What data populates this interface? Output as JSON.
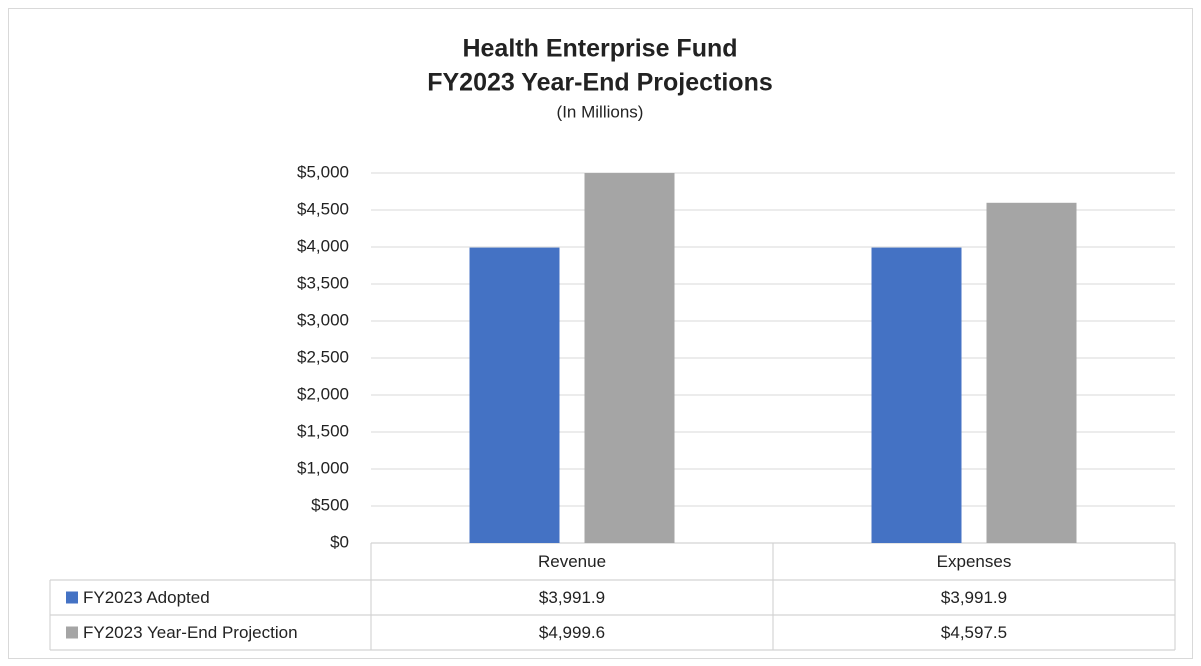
{
  "chart_data": {
    "type": "bar",
    "title": [
      "Health Enterprise Fund",
      "FY2023 Year-End Projections"
    ],
    "subtitle": "(In Millions)",
    "categories": [
      "Revenue",
      "Expenses"
    ],
    "series": [
      {
        "name": "FY2023 Adopted",
        "color": "#4472c4",
        "values": [
          3991.9,
          3991.9
        ],
        "value_labels": [
          "$3,991.9",
          "$3,991.9"
        ]
      },
      {
        "name": "FY2023 Year-End Projection",
        "color": "#a5a5a5",
        "values": [
          4999.6,
          4597.5
        ],
        "value_labels": [
          "$4,999.6",
          "$4,597.5"
        ]
      }
    ],
    "ylim": [
      0,
      5000
    ],
    "yticks": [
      {
        "value": 0,
        "label": "$0"
      },
      {
        "value": 500,
        "label": "$500"
      },
      {
        "value": 1000,
        "label": "$1,000"
      },
      {
        "value": 1500,
        "label": "$1,500"
      },
      {
        "value": 2000,
        "label": "$2,000"
      },
      {
        "value": 2500,
        "label": "$2,500"
      },
      {
        "value": 3000,
        "label": "$3,000"
      },
      {
        "value": 3500,
        "label": "$3,500"
      },
      {
        "value": 4000,
        "label": "$4,000"
      },
      {
        "value": 4500,
        "label": "$4,500"
      },
      {
        "value": 5000,
        "label": "$5,000"
      }
    ],
    "grid": true
  }
}
